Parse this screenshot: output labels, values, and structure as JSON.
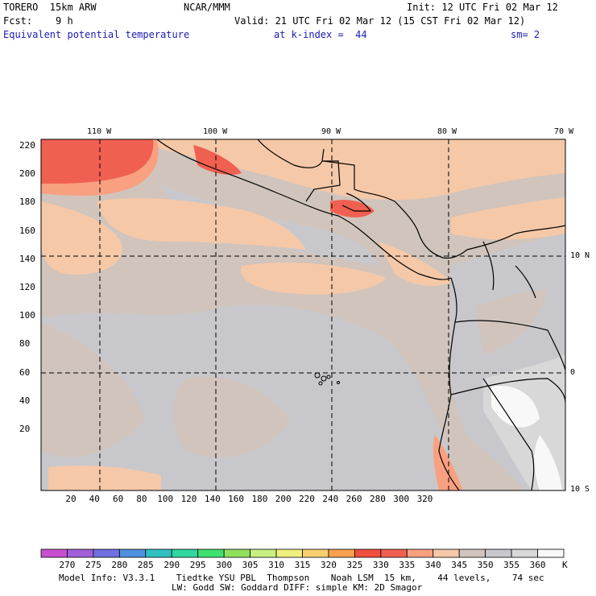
{
  "header": {
    "model_name": "TORERO  15km ARW",
    "org": "NCAR/MMM",
    "init": "Init: 12 UTC Fri 02 Mar 12",
    "fcst": "Fcst:    9 h",
    "valid": "Valid: 21 UTC Fri 02 Mar 12 (15 CST Fri 02 Mar 12)",
    "field": "Equivalent potential temperature",
    "level": "at k-index =  44",
    "smoothing": "sm= 2"
  },
  "map": {
    "lon_labels": [
      "110 W",
      "100 W",
      "90 W",
      "80 W",
      "70 W"
    ],
    "lat_labels": [
      "10 N",
      "0",
      "10 S"
    ],
    "x_ticks": [
      "20",
      "40",
      "60",
      "80",
      "100",
      "120",
      "140",
      "160",
      "180",
      "200",
      "220",
      "240",
      "260",
      "280",
      "300",
      "320"
    ],
    "y_ticks": [
      "220",
      "200",
      "180",
      "160",
      "140",
      "120",
      "100",
      "80",
      "60",
      "40",
      "20"
    ]
  },
  "colorbar": {
    "values": [
      "270",
      "275",
      "280",
      "285",
      "290",
      "295",
      "300",
      "305",
      "310",
      "315",
      "320",
      "325",
      "330",
      "335",
      "340",
      "345",
      "350",
      "355",
      "360"
    ],
    "unit": "K",
    "colors": [
      "#c84fd0",
      "#a060d8",
      "#7070e0",
      "#5090e0",
      "#30c0c0",
      "#30d8a0",
      "#40e070",
      "#90e060",
      "#c8f080",
      "#f0f080",
      "#f8d070",
      "#f8a050",
      "#f05040",
      "#f06050",
      "#f8a080",
      "#f5c8a8",
      "#d0c4bc",
      "#c8c8cc",
      "#d8d8d8",
      "#f8f8f8"
    ]
  },
  "footer": {
    "line1": "Model Info: V3.3.1    Tiedtke YSU PBL  Thompson    Noah LSM  15 km,    44 levels,    74 sec",
    "line2": "LW: Godd SW: Goddard DIFF: simple KM: 2D Smagor"
  }
}
